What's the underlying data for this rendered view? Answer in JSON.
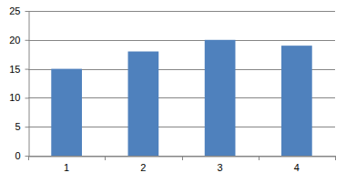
{
  "chart_data": {
    "type": "bar",
    "categories": [
      "1",
      "2",
      "3",
      "4"
    ],
    "values": [
      15,
      18,
      20,
      19
    ],
    "color": "#4f81bd",
    "ylim": [
      0,
      25
    ],
    "yticks": [
      0,
      5,
      10,
      15,
      20,
      25
    ],
    "grid": true
  }
}
